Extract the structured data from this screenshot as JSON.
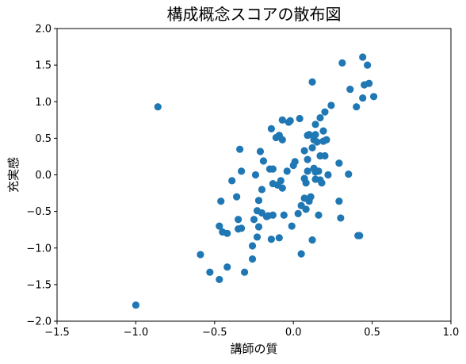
{
  "chart_data": {
    "type": "scatter",
    "title": "構成概念スコアの散布図",
    "xlabel": "講師の質",
    "ylabel": "充実感",
    "xlim": [
      -1.5,
      1.0
    ],
    "ylim": [
      -2.0,
      2.0
    ],
    "xticks": [
      "-1.5",
      "-1.0",
      "-0.5",
      "0.0",
      "0.5",
      "1.0"
    ],
    "yticks": [
      "-2.0",
      "-1.5",
      "-1.0",
      "-0.5",
      "0.0",
      "0.5",
      "1.0",
      "1.5",
      "2.0"
    ],
    "grid": false,
    "marker_color": "#1f77b4",
    "series": [
      {
        "points": [
          [
            -1.0,
            -1.78
          ],
          [
            -0.86,
            0.93
          ],
          [
            -0.59,
            -1.09
          ],
          [
            -0.53,
            -1.33
          ],
          [
            -0.47,
            -1.43
          ],
          [
            -0.47,
            -0.7
          ],
          [
            -0.46,
            -0.36
          ],
          [
            -0.45,
            -0.78
          ],
          [
            -0.42,
            -0.8
          ],
          [
            -0.42,
            -1.26
          ],
          [
            -0.39,
            -0.08
          ],
          [
            -0.36,
            -0.3
          ],
          [
            -0.35,
            -0.61
          ],
          [
            -0.35,
            -0.74
          ],
          [
            -0.33,
            -0.73
          ],
          [
            -0.33,
            0.05
          ],
          [
            -0.34,
            0.35
          ],
          [
            -0.31,
            -1.33
          ],
          [
            -0.26,
            -0.97
          ],
          [
            -0.26,
            -1.15
          ],
          [
            -0.25,
            -0.61
          ],
          [
            -0.24,
            0.0
          ],
          [
            -0.23,
            -0.85
          ],
          [
            -0.23,
            -0.49
          ],
          [
            -0.22,
            -0.35
          ],
          [
            -0.22,
            -0.71
          ],
          [
            -0.2,
            -0.2
          ],
          [
            -0.2,
            -0.52
          ],
          [
            -0.21,
            0.32
          ],
          [
            -0.19,
            0.19
          ],
          [
            -0.17,
            -0.57
          ],
          [
            -0.16,
            -0.56
          ],
          [
            -0.15,
            0.08
          ],
          [
            -0.14,
            -0.88
          ],
          [
            -0.14,
            0.63
          ],
          [
            -0.13,
            -0.55
          ],
          [
            -0.13,
            0.08
          ],
          [
            -0.13,
            -0.12
          ],
          [
            -0.11,
            0.51
          ],
          [
            -0.1,
            -0.14
          ],
          [
            -0.09,
            -0.86
          ],
          [
            -0.09,
            0.54
          ],
          [
            -0.08,
            -0.08
          ],
          [
            -0.07,
            -0.18
          ],
          [
            -0.07,
            0.75
          ],
          [
            -0.07,
            0.48
          ],
          [
            -0.06,
            -0.55
          ],
          [
            -0.04,
            0.05
          ],
          [
            -0.03,
            0.72
          ],
          [
            -0.02,
            0.74
          ],
          [
            -0.01,
            -0.7
          ],
          [
            0.0,
            0.13
          ],
          [
            0.01,
            0.18
          ],
          [
            0.03,
            -0.53
          ],
          [
            0.04,
            0.77
          ],
          [
            0.05,
            -1.08
          ],
          [
            0.05,
            -0.42
          ],
          [
            0.07,
            -0.32
          ],
          [
            0.07,
            0.33
          ],
          [
            0.07,
            -0.05
          ],
          [
            0.08,
            -0.47
          ],
          [
            0.08,
            -0.11
          ],
          [
            0.09,
            0.05
          ],
          [
            0.09,
            0.21
          ],
          [
            0.09,
            0.54
          ],
          [
            0.1,
            -0.36
          ],
          [
            0.1,
            0.55
          ],
          [
            0.11,
            -0.3
          ],
          [
            0.12,
            -0.89
          ],
          [
            0.12,
            1.27
          ],
          [
            0.12,
            0.37
          ],
          [
            0.13,
            0.09
          ],
          [
            0.13,
            0.48
          ],
          [
            0.14,
            -0.06
          ],
          [
            0.14,
            0.55
          ],
          [
            0.14,
            0.69
          ],
          [
            0.14,
            0.04
          ],
          [
            0.15,
            0.45
          ],
          [
            0.16,
            -0.55
          ],
          [
            0.16,
            0.05
          ],
          [
            0.17,
            -0.07
          ],
          [
            0.17,
            0.26
          ],
          [
            0.17,
            0.78
          ],
          [
            0.18,
            -0.11
          ],
          [
            0.19,
            0.46
          ],
          [
            0.19,
            0.6
          ],
          [
            0.2,
            0.86
          ],
          [
            0.2,
            0.26
          ],
          [
            0.21,
            0.48
          ],
          [
            0.22,
            0.0
          ],
          [
            0.24,
            0.95
          ],
          [
            0.29,
            -0.36
          ],
          [
            0.29,
            0.16
          ],
          [
            0.3,
            -0.59
          ],
          [
            0.31,
            1.53
          ],
          [
            0.35,
            0.01
          ],
          [
            0.36,
            1.17
          ],
          [
            0.4,
            0.93
          ],
          [
            0.41,
            -0.83
          ],
          [
            0.42,
            -0.83
          ],
          [
            0.44,
            1.05
          ],
          [
            0.44,
            1.61
          ],
          [
            0.45,
            1.23
          ],
          [
            0.47,
            1.5
          ],
          [
            0.48,
            1.25
          ],
          [
            0.51,
            1.07
          ]
        ]
      }
    ]
  }
}
